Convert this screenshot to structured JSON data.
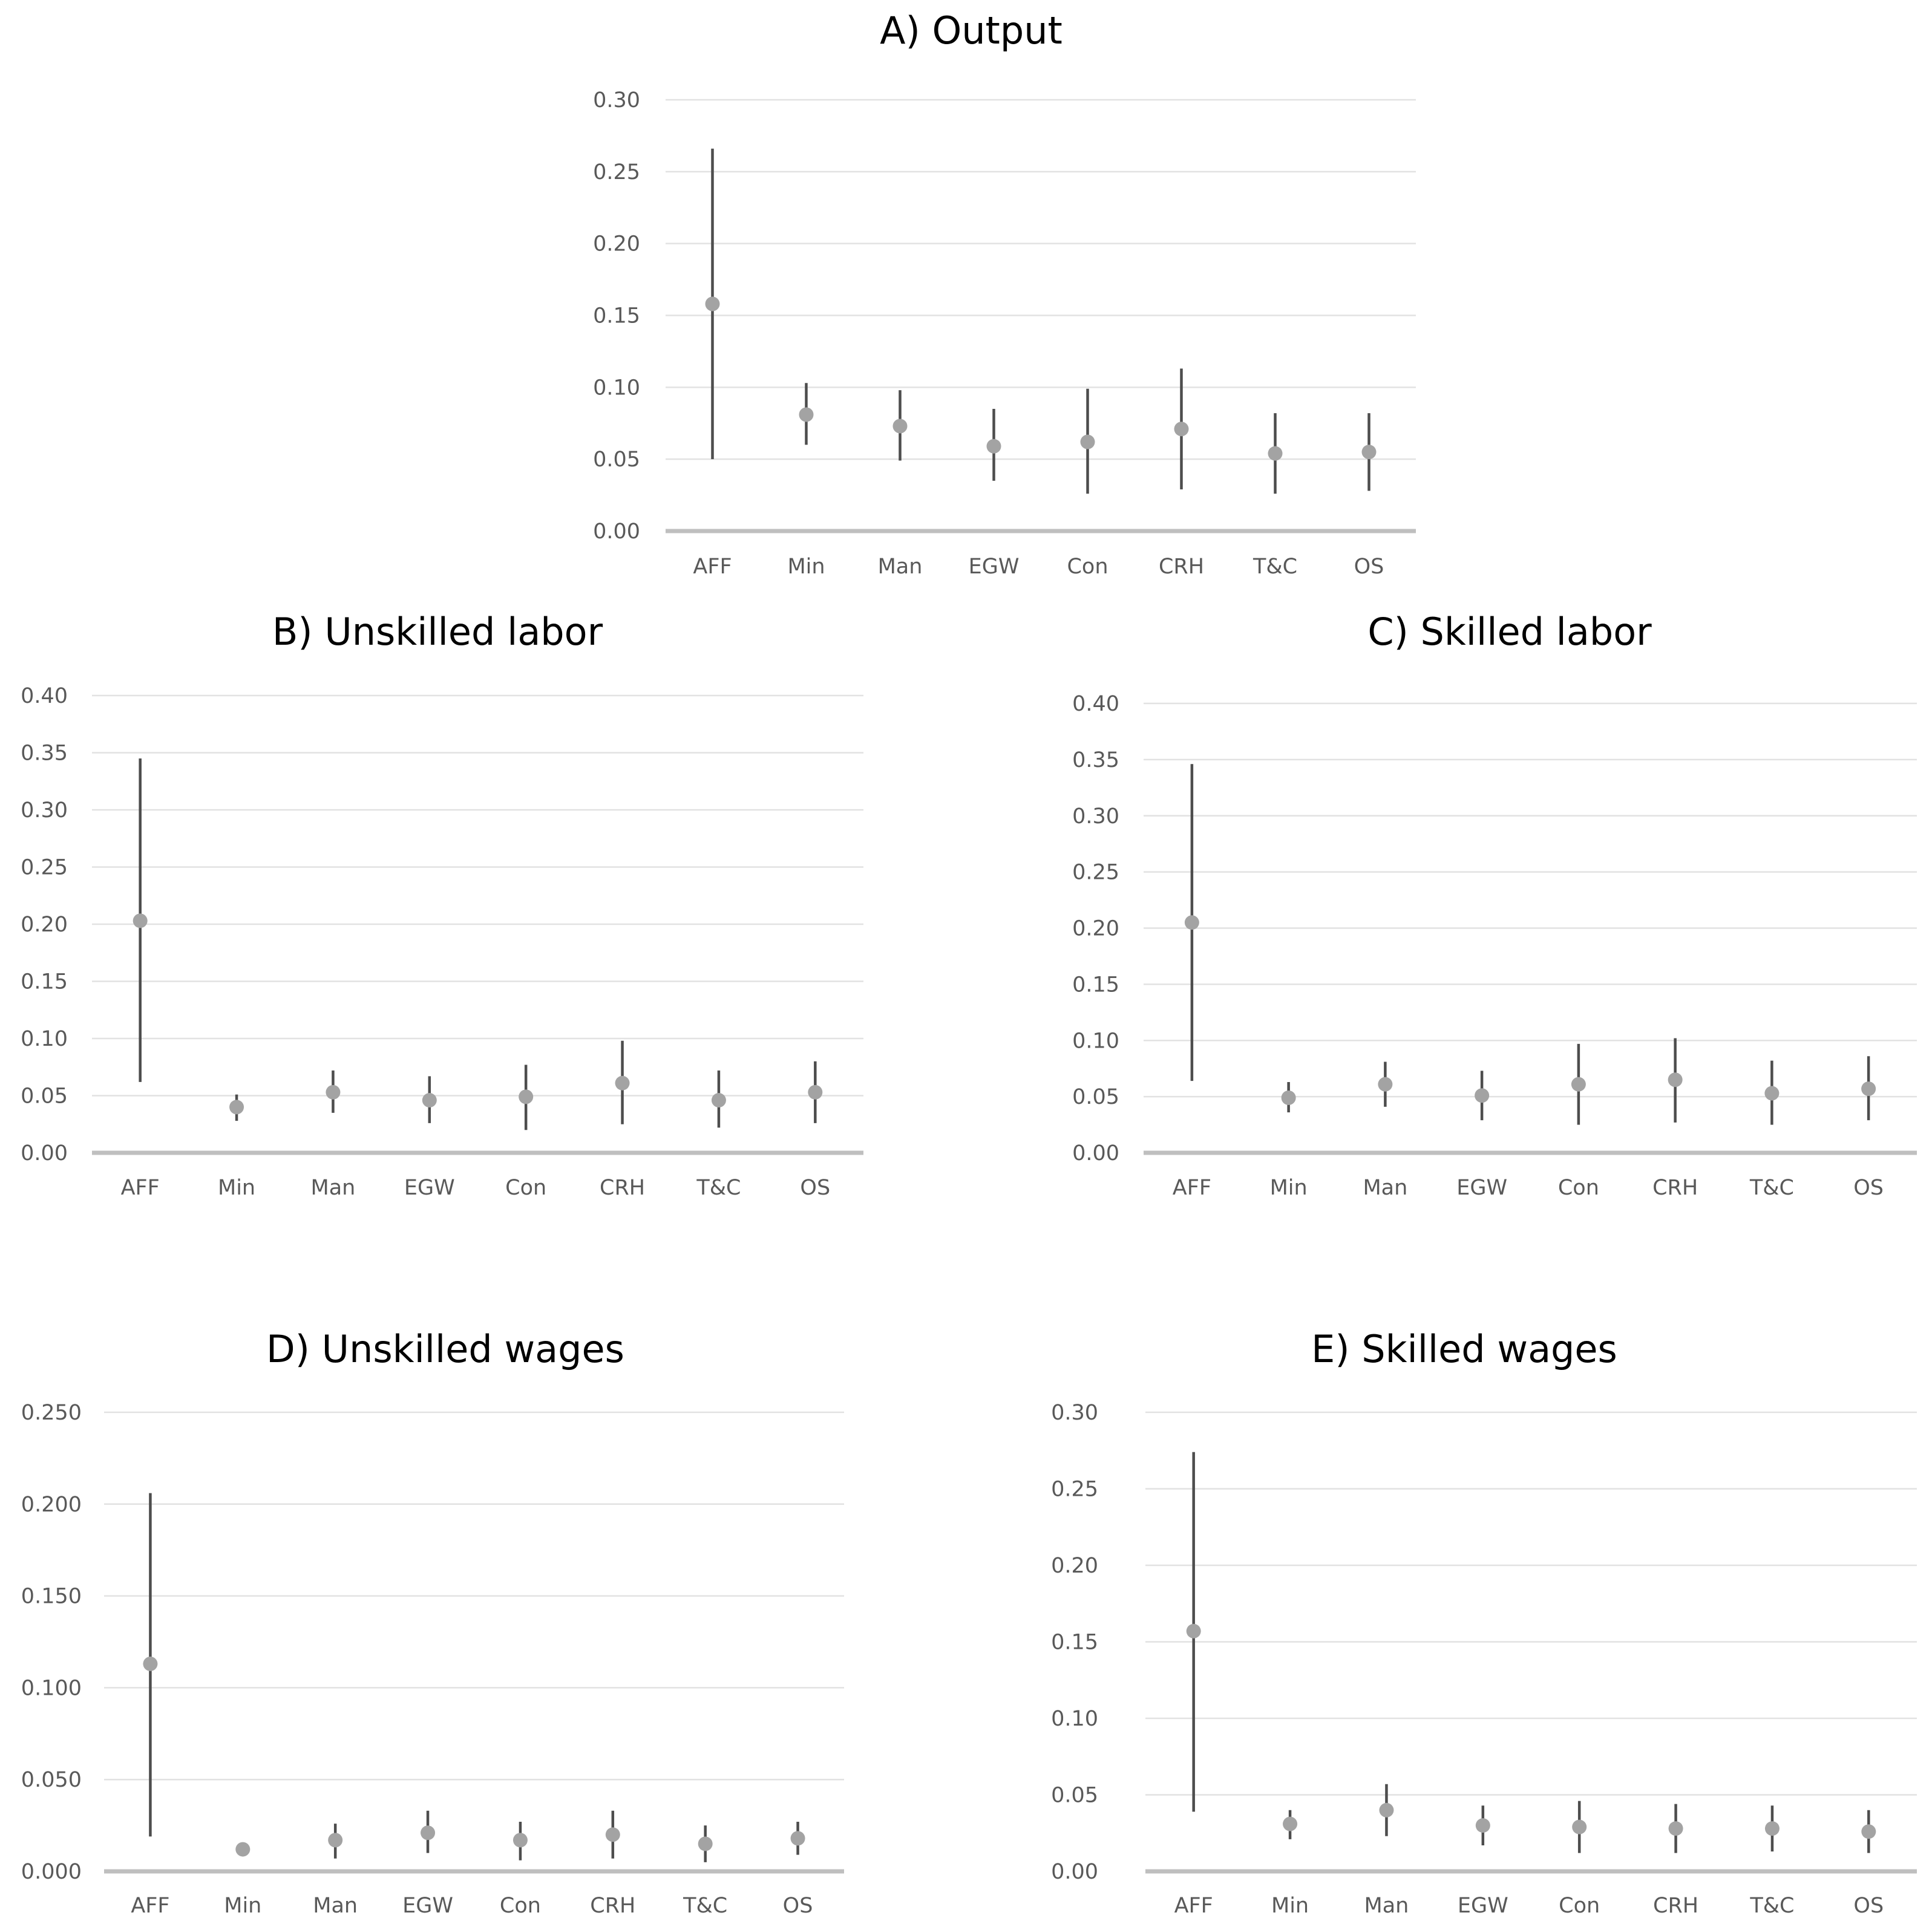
{
  "chart_data": [
    {
      "type": "scatter",
      "id": "output",
      "title": "A) Output",
      "categories": [
        "AFF",
        "Min",
        "Man",
        "EGW",
        "Con",
        "CRH",
        "T&C",
        "OS"
      ],
      "values": [
        0.158,
        0.081,
        0.073,
        0.059,
        0.062,
        0.071,
        0.054,
        0.055
      ],
      "lower": [
        0.05,
        0.06,
        0.049,
        0.035,
        0.026,
        0.029,
        0.026,
        0.028
      ],
      "upper": [
        0.266,
        0.103,
        0.098,
        0.085,
        0.099,
        0.113,
        0.082,
        0.082
      ],
      "ylim": [
        0,
        0.3
      ],
      "yticks": [
        0,
        0.05,
        0.1,
        0.15,
        0.2,
        0.25,
        0.3
      ],
      "ytick_labels": [
        "0.00",
        "0.05",
        "0.10",
        "0.15",
        "0.20",
        "0.25",
        "0.30"
      ],
      "xlabel": "",
      "ylabel": "",
      "grid": true
    },
    {
      "type": "scatter",
      "id": "unskilled-labor",
      "title": "B) Unskilled labor",
      "categories": [
        "AFF",
        "Min",
        "Man",
        "EGW",
        "Con",
        "CRH",
        "T&C",
        "OS"
      ],
      "values": [
        0.203,
        0.04,
        0.053,
        0.046,
        0.049,
        0.061,
        0.046,
        0.053
      ],
      "lower": [
        0.062,
        0.028,
        0.035,
        0.026,
        0.02,
        0.025,
        0.022,
        0.026
      ],
      "upper": [
        0.345,
        0.051,
        0.072,
        0.067,
        0.077,
        0.098,
        0.072,
        0.08
      ],
      "ylim": [
        0,
        0.4
      ],
      "yticks": [
        0,
        0.05,
        0.1,
        0.15,
        0.2,
        0.25,
        0.3,
        0.35,
        0.4
      ],
      "ytick_labels": [
        "0.00",
        "0.05",
        "0.10",
        "0.15",
        "0.20",
        "0.25",
        "0.30",
        "0.35",
        "0.40"
      ],
      "xlabel": "",
      "ylabel": "",
      "grid": true
    },
    {
      "type": "scatter",
      "id": "skilled-labor",
      "title": "C) Skilled labor",
      "categories": [
        "AFF",
        "Min",
        "Man",
        "EGW",
        "Con",
        "CRH",
        "T&C",
        "OS"
      ],
      "values": [
        0.205,
        0.049,
        0.061,
        0.051,
        0.061,
        0.065,
        0.053,
        0.057
      ],
      "lower": [
        0.064,
        0.036,
        0.041,
        0.029,
        0.025,
        0.027,
        0.025,
        0.029
      ],
      "upper": [
        0.346,
        0.063,
        0.081,
        0.073,
        0.097,
        0.102,
        0.082,
        0.086
      ],
      "ylim": [
        0,
        0.4
      ],
      "yticks": [
        0,
        0.05,
        0.1,
        0.15,
        0.2,
        0.25,
        0.3,
        0.35,
        0.4
      ],
      "ytick_labels": [
        "0.00",
        "0.05",
        "0.10",
        "0.15",
        "0.20",
        "0.25",
        "0.30",
        "0.35",
        "0.40"
      ],
      "xlabel": "",
      "ylabel": "",
      "grid": true
    },
    {
      "type": "scatter",
      "id": "unskilled-wages",
      "title": "D) Unskilled wages",
      "categories": [
        "AFF",
        "Min",
        "Man",
        "EGW",
        "Con",
        "CRH",
        "T&C",
        "OS"
      ],
      "values": [
        0.113,
        0.012,
        0.017,
        0.021,
        0.017,
        0.02,
        0.015,
        0.018
      ],
      "lower": [
        0.019,
        0.009,
        0.007,
        0.01,
        0.006,
        0.007,
        0.005,
        0.009
      ],
      "upper": [
        0.206,
        0.015,
        0.026,
        0.033,
        0.027,
        0.033,
        0.025,
        0.027
      ],
      "ylim": [
        0,
        0.25
      ],
      "yticks": [
        0,
        0.05,
        0.1,
        0.15,
        0.2,
        0.25
      ],
      "ytick_labels": [
        "0.000",
        "0.050",
        "0.100",
        "0.150",
        "0.200",
        "0.250"
      ],
      "xlabel": "",
      "ylabel": "",
      "grid": true
    },
    {
      "type": "scatter",
      "id": "skilled-wages",
      "title": "E) Skilled wages",
      "categories": [
        "AFF",
        "Min",
        "Man",
        "EGW",
        "Con",
        "CRH",
        "T&C",
        "OS"
      ],
      "values": [
        0.157,
        0.031,
        0.04,
        0.03,
        0.029,
        0.028,
        0.028,
        0.026
      ],
      "lower": [
        0.039,
        0.021,
        0.023,
        0.017,
        0.012,
        0.012,
        0.013,
        0.012
      ],
      "upper": [
        0.274,
        0.04,
        0.057,
        0.043,
        0.046,
        0.044,
        0.043,
        0.04
      ],
      "ylim": [
        0,
        0.3
      ],
      "yticks": [
        0,
        0.05,
        0.1,
        0.15,
        0.2,
        0.25,
        0.3
      ],
      "ytick_labels": [
        "0.00",
        "0.05",
        "0.10",
        "0.15",
        "0.20",
        "0.25",
        "0.30"
      ],
      "xlabel": "",
      "ylabel": "",
      "grid": true
    }
  ]
}
